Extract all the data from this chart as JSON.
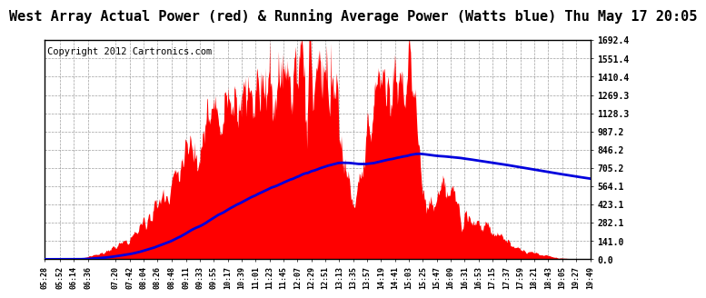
{
  "title": "West Array Actual Power (red) & Running Average Power (Watts blue) Thu May 17 20:05",
  "copyright": "Copyright 2012 Cartronics.com",
  "ymax": 1692.4,
  "ymin": 0.0,
  "yticks": [
    0.0,
    141.0,
    282.1,
    423.1,
    564.1,
    705.2,
    846.2,
    987.2,
    1128.3,
    1269.3,
    1410.4,
    1551.4,
    1692.4
  ],
  "xtick_labels": [
    "05:28",
    "05:52",
    "06:14",
    "06:36",
    "07:20",
    "07:42",
    "08:04",
    "08:26",
    "08:48",
    "09:11",
    "09:33",
    "09:55",
    "10:17",
    "10:39",
    "11:01",
    "11:23",
    "11:45",
    "12:07",
    "12:29",
    "12:51",
    "13:13",
    "13:35",
    "13:57",
    "14:19",
    "14:41",
    "15:03",
    "15:25",
    "15:47",
    "16:09",
    "16:31",
    "16:53",
    "17:15",
    "17:37",
    "17:59",
    "18:21",
    "18:43",
    "19:05",
    "19:27",
    "19:49"
  ],
  "bg_color": "#ffffff",
  "grid_color": "#888888",
  "red_color": "#ff0000",
  "blue_color": "#0000dd",
  "title_fontsize": 11,
  "copyright_fontsize": 7.5
}
